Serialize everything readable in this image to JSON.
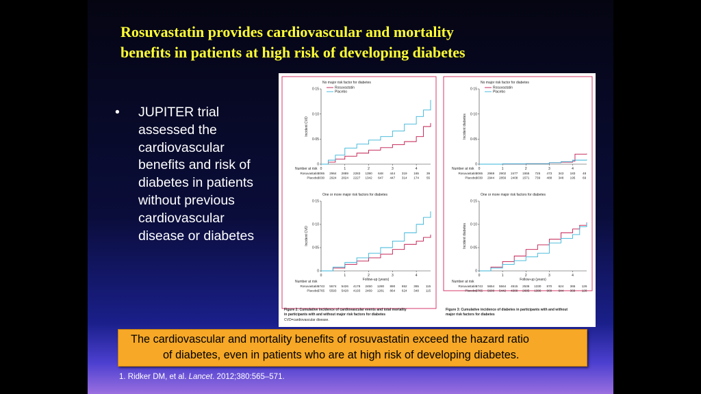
{
  "slide": {
    "title_line1": "Rosuvastatin provides cardiovascular and mortality",
    "title_line2": "benefits in patients at high risk of developing diabetes",
    "bullet_marker": "•",
    "bullet_lines": [
      "JUPITER trial",
      "assessed the",
      "cardiovascular",
      "benefits and risk of",
      "diabetes in patients",
      "without previous",
      "cardiovascular",
      "disease or diabetes"
    ],
    "callout_line1": "The cardiovascular and mortality benefits of rosuvastatin exceed the hazard ratio",
    "callout_line2": "of diabetes, even in patients who are at high risk of developing diabetes.",
    "reference_pre": "1. Ridker  DM, et al. ",
    "reference_journal": "Lancet",
    "reference_post": ". 2012;380:565–571."
  },
  "colors": {
    "title": "#ffff33",
    "rosuvastatin": "#c0154a",
    "placebo": "#35b4d8",
    "panel_border": "#d43a6a",
    "callout_bg": "#f6a826"
  },
  "figure_captions": {
    "left_title": "Figure 2: Cumulative incidence of cardiovascular events and total mortality in participants with and without major risk factors for diabetes",
    "left_note": "CVD=cardiovascular disease.",
    "right_title": "Figure 3: Cumulative incidence of diabetes in participants with and without major risk factors for diabetes"
  },
  "chart_data": [
    {
      "type": "line",
      "title": "No major risk factor for diabetes",
      "xlabel": "",
      "ylabel": "Incident CVD",
      "xlim": [
        0,
        4.6
      ],
      "ylim": [
        0,
        0.15
      ],
      "xticks": [
        "0",
        "1",
        "2",
        "3",
        "4"
      ],
      "yticks": [
        "0",
        "0·05",
        "0·10",
        "0·15"
      ],
      "legend_position": "top-left",
      "series": [
        {
          "name": "Rosuvastatin",
          "x": [
            0,
            0.3,
            0.6,
            1.0,
            1.5,
            2.0,
            2.5,
            3.0,
            3.5,
            4.0,
            4.3,
            4.6
          ],
          "values": [
            0,
            0.004,
            0.01,
            0.016,
            0.022,
            0.028,
            0.033,
            0.039,
            0.045,
            0.055,
            0.075,
            0.082
          ]
        },
        {
          "name": "Placebo",
          "x": [
            0,
            0.3,
            0.6,
            1.0,
            1.5,
            2.0,
            2.5,
            3.0,
            3.5,
            4.0,
            4.3,
            4.6
          ],
          "values": [
            0,
            0.008,
            0.018,
            0.032,
            0.04,
            0.048,
            0.055,
            0.066,
            0.08,
            0.095,
            0.108,
            0.128
          ]
        }
      ],
      "risk_table": {
        "header": "Number at risk",
        "rows": [
          {
            "label": "Rosuvastatin",
            "values": [
              "3065",
              "2964",
              "2889",
              "2283",
              "1390",
              "648",
              "444",
              "319",
              "165",
              "39"
            ]
          },
          {
            "label": "Placebo",
            "values": [
              "3030",
              "2924",
              "2824",
              "2227",
              "1342",
              "647",
              "447",
              "314",
              "174",
              "55"
            ]
          }
        ]
      }
    },
    {
      "type": "line",
      "title": "One or more major risk factors for diabetes",
      "xlabel": "Follow-up (years)",
      "ylabel": "Incident CVD",
      "xlim": [
        0,
        4.6
      ],
      "ylim": [
        0,
        0.15
      ],
      "xticks": [
        "0",
        "1",
        "2",
        "3",
        "4"
      ],
      "yticks": [
        "0",
        "0·05",
        "0·10",
        "0·15"
      ],
      "series": [
        {
          "name": "Rosuvastatin",
          "x": [
            0,
            0.5,
            1.0,
            1.5,
            2.0,
            2.5,
            3.0,
            3.5,
            4.0,
            4.3,
            4.6
          ],
          "values": [
            0,
            0.006,
            0.014,
            0.021,
            0.028,
            0.036,
            0.046,
            0.057,
            0.064,
            0.072,
            0.078
          ]
        },
        {
          "name": "Placebo",
          "x": [
            0,
            0.5,
            1.0,
            1.5,
            2.0,
            2.5,
            3.0,
            3.5,
            4.0,
            4.3,
            4.6
          ],
          "values": [
            0,
            0.008,
            0.018,
            0.028,
            0.038,
            0.05,
            0.064,
            0.082,
            0.1,
            0.115,
            0.128
          ]
        }
      ],
      "risk_table": {
        "header": "Number at risk",
        "rows": [
          {
            "label": "Rosuvastatin",
            "values": [
              "5743",
              "5574",
              "5426",
              "4178",
              "2450",
              "1280",
              "890",
              "652",
              "365",
              "115"
            ]
          },
          {
            "label": "Placebo",
            "values": [
              "5765",
              "5593",
              "5428",
              "4193",
              "2469",
              "1281",
              "864",
              "624",
              "348",
              "115"
            ]
          }
        ]
      }
    },
    {
      "type": "line",
      "title": "No major risk factor for diabetes",
      "xlabel": "",
      "ylabel": "Incident diabetes",
      "xlim": [
        0,
        4.6
      ],
      "ylim": [
        0,
        0.15
      ],
      "xticks": [
        "0",
        "1",
        "2",
        "3",
        "4"
      ],
      "yticks": [
        "0",
        "0·05",
        "0·10",
        "0·15"
      ],
      "legend_position": "top-left",
      "series": [
        {
          "name": "Rosuvastatin",
          "x": [
            0,
            1.0,
            2.0,
            3.0,
            3.5,
            4.0,
            4.1,
            4.6
          ],
          "values": [
            0,
            0.0005,
            0.001,
            0.003,
            0.004,
            0.006,
            0.02,
            0.021
          ]
        },
        {
          "name": "Placebo",
          "x": [
            0,
            1.0,
            2.0,
            3.0,
            3.5,
            4.0,
            4.6
          ],
          "values": [
            0,
            0.0005,
            0.001,
            0.003,
            0.005,
            0.008,
            0.009
          ]
        }
      ],
      "risk_table": {
        "header": "Number at risk",
        "rows": [
          {
            "label": "Rosuvastatin",
            "values": [
              "3065",
              "2969",
              "2902",
              "2477",
              "1555",
              "725",
              "473",
              "343",
              "183",
              "48"
            ]
          },
          {
            "label": "Placebo",
            "values": [
              "3030",
              "2944",
              "2856",
              "2408",
              "1571",
              "739",
              "488",
              "348",
              "195",
              "69"
            ]
          }
        ]
      }
    },
    {
      "type": "line",
      "title": "One or more major risk factors for diabetes",
      "xlabel": "Follow-up (years)",
      "ylabel": "Incident diabetes",
      "xlim": [
        0,
        4.6
      ],
      "ylim": [
        0,
        0.15
      ],
      "xticks": [
        "0",
        "1",
        "2",
        "3",
        "4"
      ],
      "yticks": [
        "0",
        "0·05",
        "0·10",
        "0·15"
      ],
      "series": [
        {
          "name": "Rosuvastatin",
          "x": [
            0,
            0.5,
            1.0,
            1.5,
            2.0,
            2.5,
            3.0,
            3.5,
            4.0,
            4.3,
            4.6
          ],
          "values": [
            0,
            0.008,
            0.02,
            0.032,
            0.046,
            0.056,
            0.068,
            0.082,
            0.09,
            0.098,
            0.104
          ]
        },
        {
          "name": "Placebo",
          "x": [
            0,
            0.5,
            1.0,
            1.5,
            2.0,
            2.5,
            3.0,
            3.5,
            4.0,
            4.3,
            4.6
          ],
          "values": [
            0,
            0.006,
            0.014,
            0.022,
            0.03,
            0.038,
            0.06,
            0.07,
            0.078,
            0.095,
            0.103
          ]
        }
      ],
      "risk_table": {
        "header": "Number at risk",
        "rows": [
          {
            "label": "Rosuvastatin",
            "values": [
              "5743",
              "5654",
              "5564",
              "4515",
              "2536",
              "1330",
              "870",
              "624",
              "365",
              "126"
            ]
          },
          {
            "label": "Placebo",
            "values": [
              "5765",
              "5600",
              "5442",
              "4380",
              "2685",
              "1386",
              "909",
              "644",
              "368",
              "128"
            ]
          }
        ]
      }
    }
  ]
}
